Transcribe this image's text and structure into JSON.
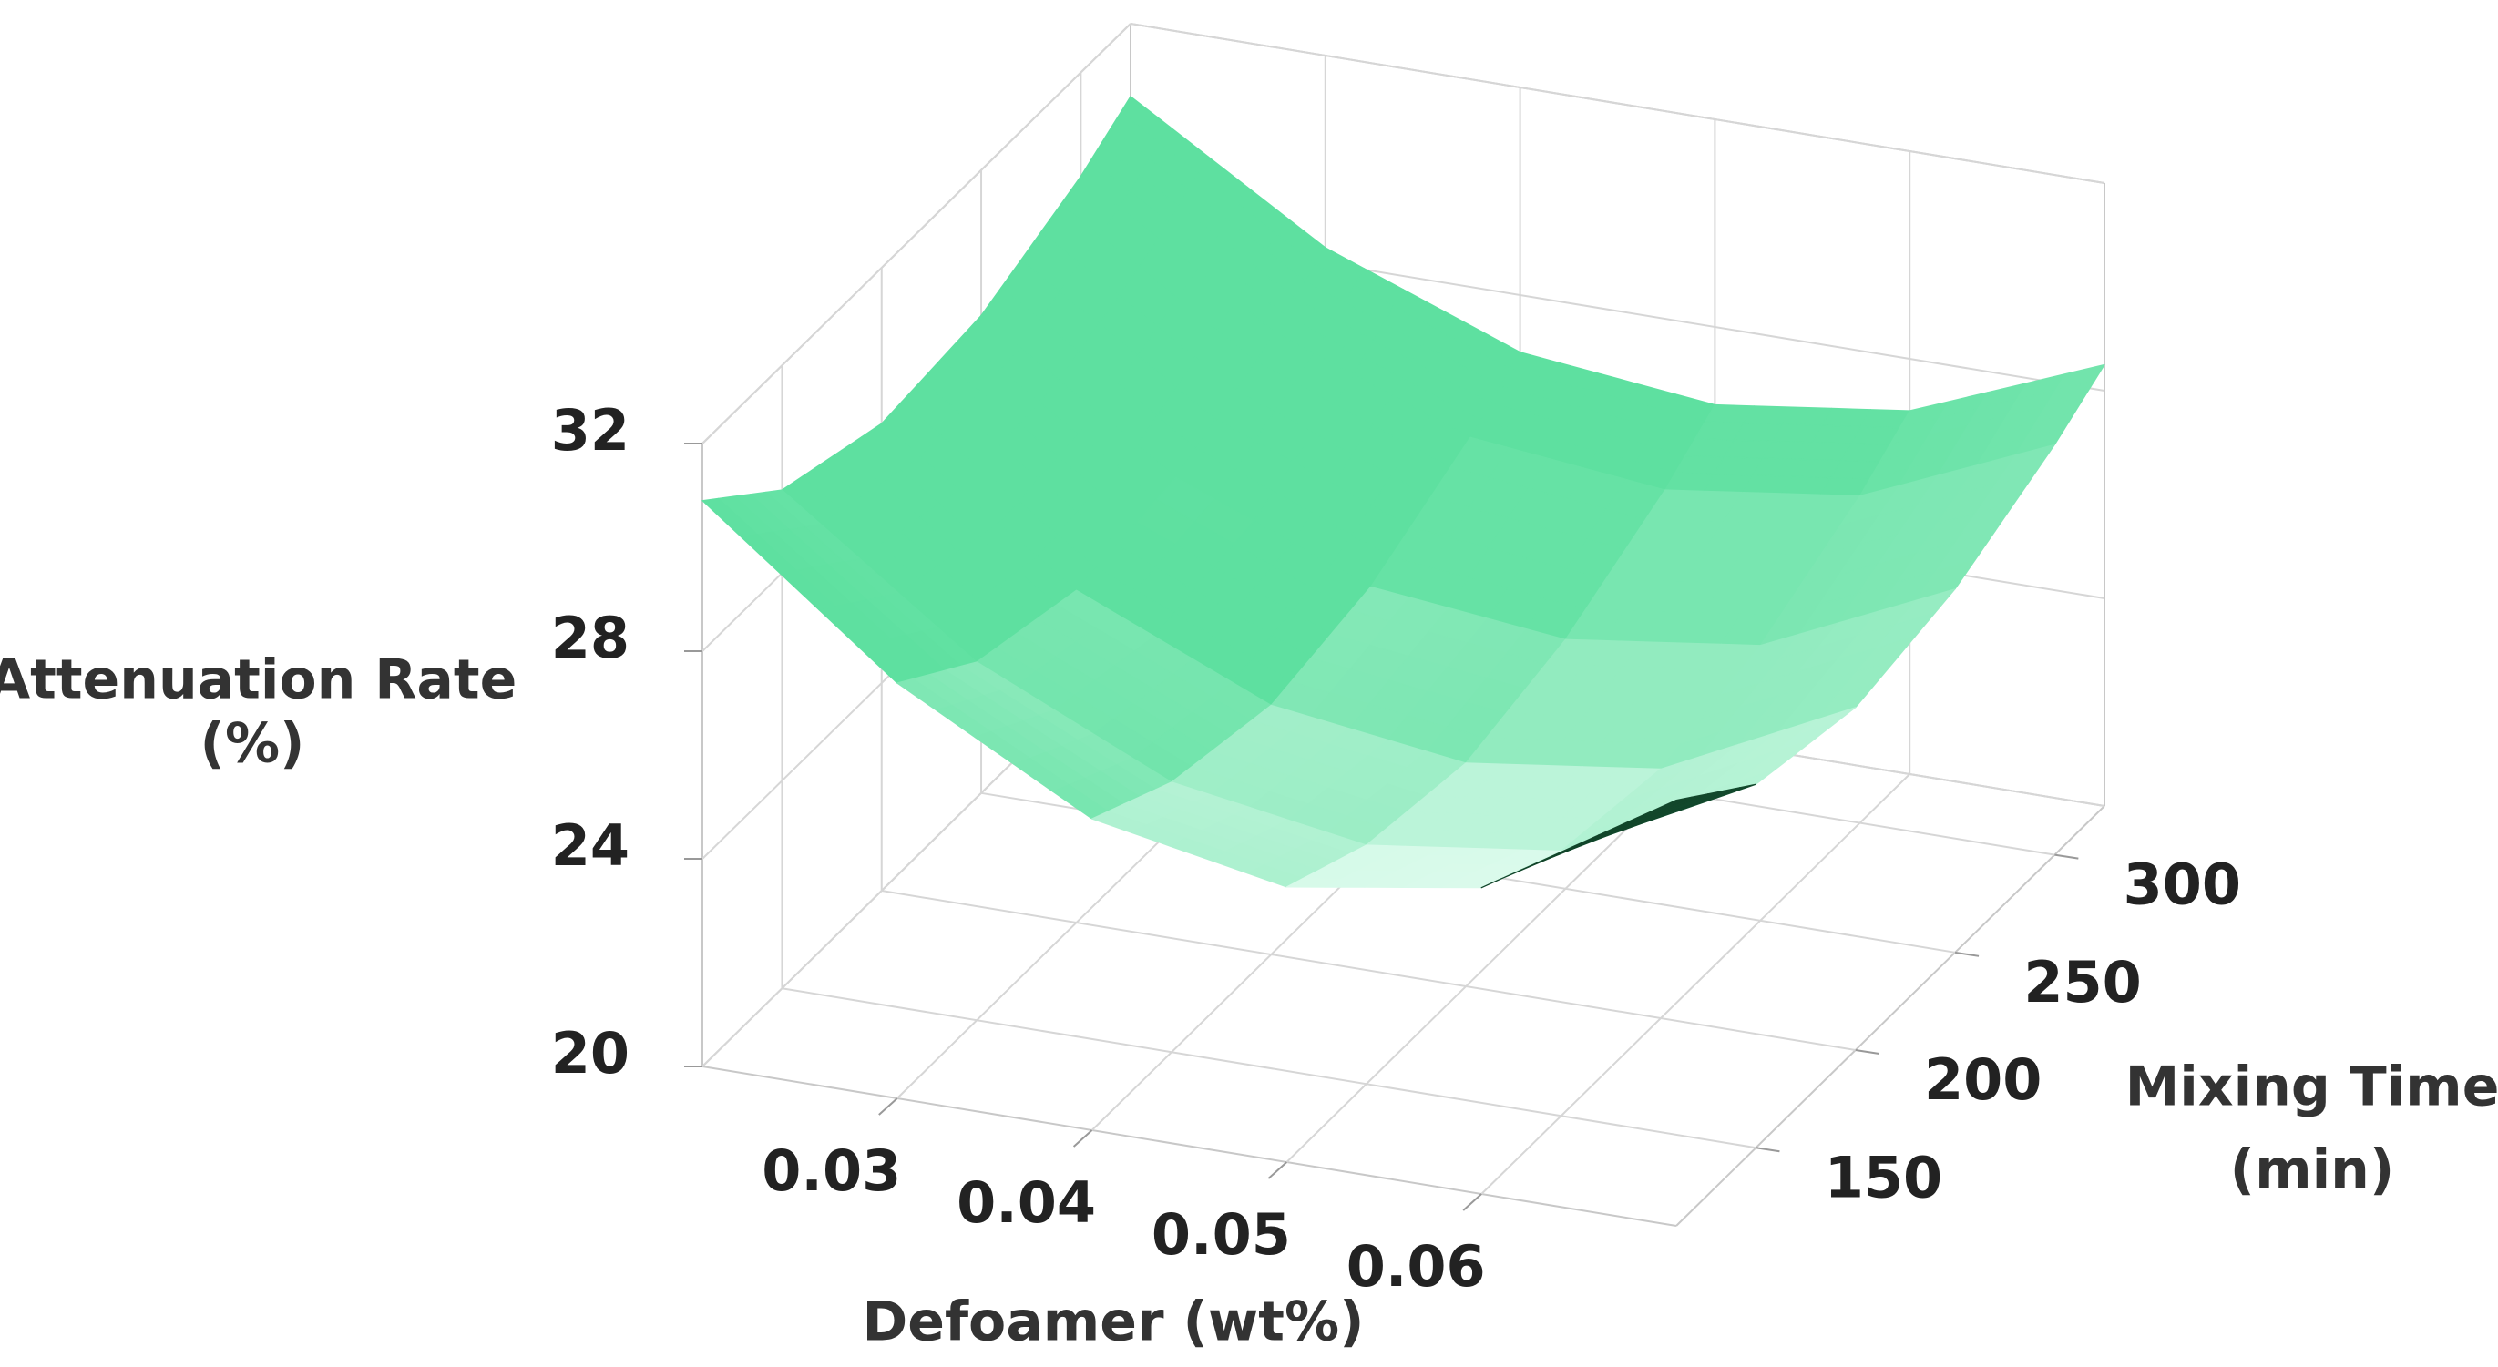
{
  "chart_data": {
    "type": "surface",
    "xlabel": "Defoamer (wt%)",
    "ylabel": [
      "Mixing Time",
      "(min)"
    ],
    "zlabel": [
      "Attenuation Rate",
      "(%)"
    ],
    "x": [
      0.02,
      0.03,
      0.04,
      0.05,
      0.06,
      0.07
    ],
    "y": [
      110,
      150,
      200,
      250,
      300,
      325
    ],
    "z": [
      [
        30.9,
        28.0,
        26.0,
        25.3,
        25.9,
        28.2
      ],
      [
        29.6,
        26.9,
        25.2,
        24.6,
        25.1,
        27.0
      ],
      [
        29.0,
        26.4,
        24.8,
        24.3,
        24.8,
        26.6
      ],
      [
        29.2,
        26.7,
        25.2,
        24.8,
        25.3,
        27.0
      ],
      [
        30.0,
        27.6,
        26.2,
        25.8,
        26.3,
        27.9
      ],
      [
        30.6,
        28.3,
        26.9,
        26.5,
        27.0,
        28.5
      ]
    ],
    "xlim": [
      0.02,
      0.07
    ],
    "ylim": [
      110,
      325
    ],
    "zlim": [
      20,
      32
    ],
    "xticks": [
      0.03,
      0.04,
      0.05,
      0.06
    ],
    "yticks": [
      150,
      200,
      250,
      300
    ],
    "zticks": [
      20,
      24,
      28,
      32
    ],
    "colors": [
      "#062f19",
      "#5ee0a0",
      "#effff8"
    ],
    "grid": true
  }
}
